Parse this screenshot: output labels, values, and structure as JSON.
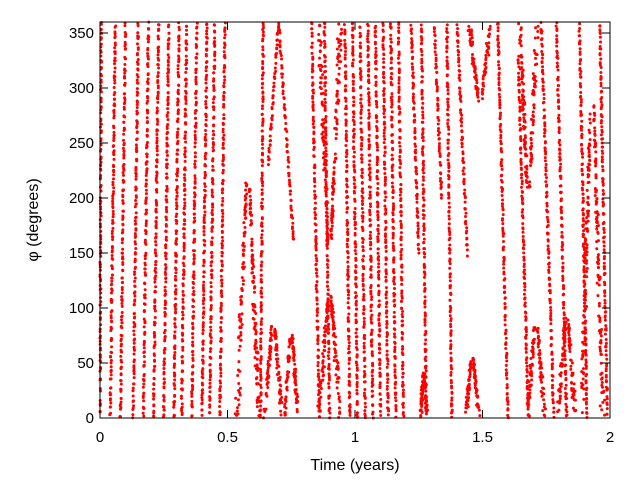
{
  "chart_data": {
    "type": "scatter",
    "title": "",
    "xlabel": "Time (years)",
    "ylabel": "φ (degrees)",
    "xlim": [
      0,
      2
    ],
    "ylim": [
      0,
      360
    ],
    "x_ticks": [
      0,
      0.5,
      1,
      1.5,
      2
    ],
    "x_tick_labels": [
      "0",
      "0.5",
      "1",
      "1.5",
      "2"
    ],
    "y_ticks": [
      0,
      50,
      100,
      150,
      200,
      250,
      300,
      350
    ],
    "y_tick_labels": [
      "0",
      "50",
      "100",
      "150",
      "200",
      "250",
      "300",
      "350"
    ],
    "grid": false,
    "legend": "none",
    "series": [
      {
        "color": "#ff0000",
        "marker": "dot",
        "description_of_pattern": "dense wrapped phase trajectory",
        "sweeps": [
          {
            "x0": 0.0,
            "x1": 0.005,
            "y0": 0,
            "y1": 360
          },
          {
            "x0": 0.04,
            "x1": 0.06,
            "y0": 0,
            "y1": 360
          },
          {
            "x0": 0.08,
            "x1": 0.1,
            "y0": 0,
            "y1": 360
          },
          {
            "x0": 0.13,
            "x1": 0.15,
            "y0": 0,
            "y1": 360
          },
          {
            "x0": 0.17,
            "x1": 0.19,
            "y0": 0,
            "y1": 360
          },
          {
            "x0": 0.21,
            "x1": 0.23,
            "y0": 0,
            "y1": 360
          },
          {
            "x0": 0.25,
            "x1": 0.27,
            "y0": 0,
            "y1": 360
          },
          {
            "x0": 0.29,
            "x1": 0.31,
            "y0": 0,
            "y1": 360
          },
          {
            "x0": 0.32,
            "x1": 0.34,
            "y0": 0,
            "y1": 360
          },
          {
            "x0": 0.36,
            "x1": 0.38,
            "y0": 0,
            "y1": 360
          },
          {
            "x0": 0.4,
            "x1": 0.42,
            "y0": 0,
            "y1": 360
          },
          {
            "x0": 0.43,
            "x1": 0.45,
            "y0": 0,
            "y1": 360
          },
          {
            "x0": 0.47,
            "x1": 0.49,
            "y0": 0,
            "y1": 360
          },
          {
            "x0": 0.63,
            "x1": 0.64,
            "y0": 0,
            "y1": 360
          },
          {
            "x0": 0.66,
            "x1": 0.7,
            "y0": 230,
            "y1": 360
          },
          {
            "x0": 0.7,
            "x1": 0.76,
            "y0": 360,
            "y1": 160
          },
          {
            "x0": 0.83,
            "x1": 0.86,
            "y0": 360,
            "y1": 0
          },
          {
            "x0": 0.88,
            "x1": 0.9,
            "y0": 360,
            "y1": 0
          },
          {
            "x0": 0.96,
            "x1": 0.98,
            "y0": 360,
            "y1": 0
          },
          {
            "x0": 0.99,
            "x1": 1.01,
            "y0": 360,
            "y1": 0
          },
          {
            "x0": 1.02,
            "x1": 1.04,
            "y0": 360,
            "y1": 0
          },
          {
            "x0": 1.05,
            "x1": 1.07,
            "y0": 360,
            "y1": 0
          },
          {
            "x0": 1.08,
            "x1": 1.1,
            "y0": 360,
            "y1": 0
          },
          {
            "x0": 1.11,
            "x1": 1.13,
            "y0": 360,
            "y1": 0
          },
          {
            "x0": 1.14,
            "x1": 1.16,
            "y0": 360,
            "y1": 0
          },
          {
            "x0": 1.17,
            "x1": 1.19,
            "y0": 360,
            "y1": 0
          },
          {
            "x0": 1.22,
            "x1": 1.25,
            "y0": 360,
            "y1": 150
          },
          {
            "x0": 1.26,
            "x1": 1.28,
            "y0": 360,
            "y1": 0
          },
          {
            "x0": 1.31,
            "x1": 1.34,
            "y0": 360,
            "y1": 200
          },
          {
            "x0": 1.36,
            "x1": 1.38,
            "y0": 360,
            "y1": 0
          },
          {
            "x0": 1.4,
            "x1": 1.44,
            "y0": 360,
            "y1": 150
          },
          {
            "x0": 1.56,
            "x1": 1.6,
            "y0": 360,
            "y1": 0
          },
          {
            "x0": 1.64,
            "x1": 1.68,
            "y0": 330,
            "y1": 0
          },
          {
            "x0": 1.73,
            "x1": 1.78,
            "y0": 360,
            "y1": 0
          },
          {
            "x0": 1.79,
            "x1": 1.83,
            "y0": 360,
            "y1": 0
          },
          {
            "x0": 1.88,
            "x1": 1.91,
            "y0": 360,
            "y1": 0
          },
          {
            "x0": 1.96,
            "x1": 1.99,
            "y0": 360,
            "y1": 0
          }
        ],
        "lobes": [
          {
            "x_center": 0.58,
            "width": 0.1,
            "y_base": 0,
            "y_peak": 215
          },
          {
            "x_center": 0.68,
            "width": 0.08,
            "y_base": 0,
            "y_peak": 85
          },
          {
            "x_center": 0.75,
            "width": 0.06,
            "y_base": 0,
            "y_peak": 75
          },
          {
            "x_center": 0.9,
            "width": 0.1,
            "y_base": 360,
            "y_dip": 160
          },
          {
            "x_center": 0.9,
            "width": 0.1,
            "y_base": 0,
            "y_peak": 110
          },
          {
            "x_center": 1.27,
            "width": 0.03,
            "y_base": 0,
            "y_peak": 40
          },
          {
            "x_center": 1.46,
            "width": 0.06,
            "y_base": 0,
            "y_peak": 55
          },
          {
            "x_center": 1.49,
            "width": 0.1,
            "y_base": 360,
            "y_dip": 290
          },
          {
            "x_center": 1.68,
            "width": 0.08,
            "y_base": 360,
            "y_dip": 210
          },
          {
            "x_center": 1.71,
            "width": 0.08,
            "y_base": 0,
            "y_peak": 85
          },
          {
            "x_center": 1.83,
            "width": 0.08,
            "y_base": 0,
            "y_peak": 90
          },
          {
            "x_center": 1.93,
            "width": 0.1,
            "y_base": 0,
            "y_peak": 285
          }
        ]
      }
    ]
  }
}
